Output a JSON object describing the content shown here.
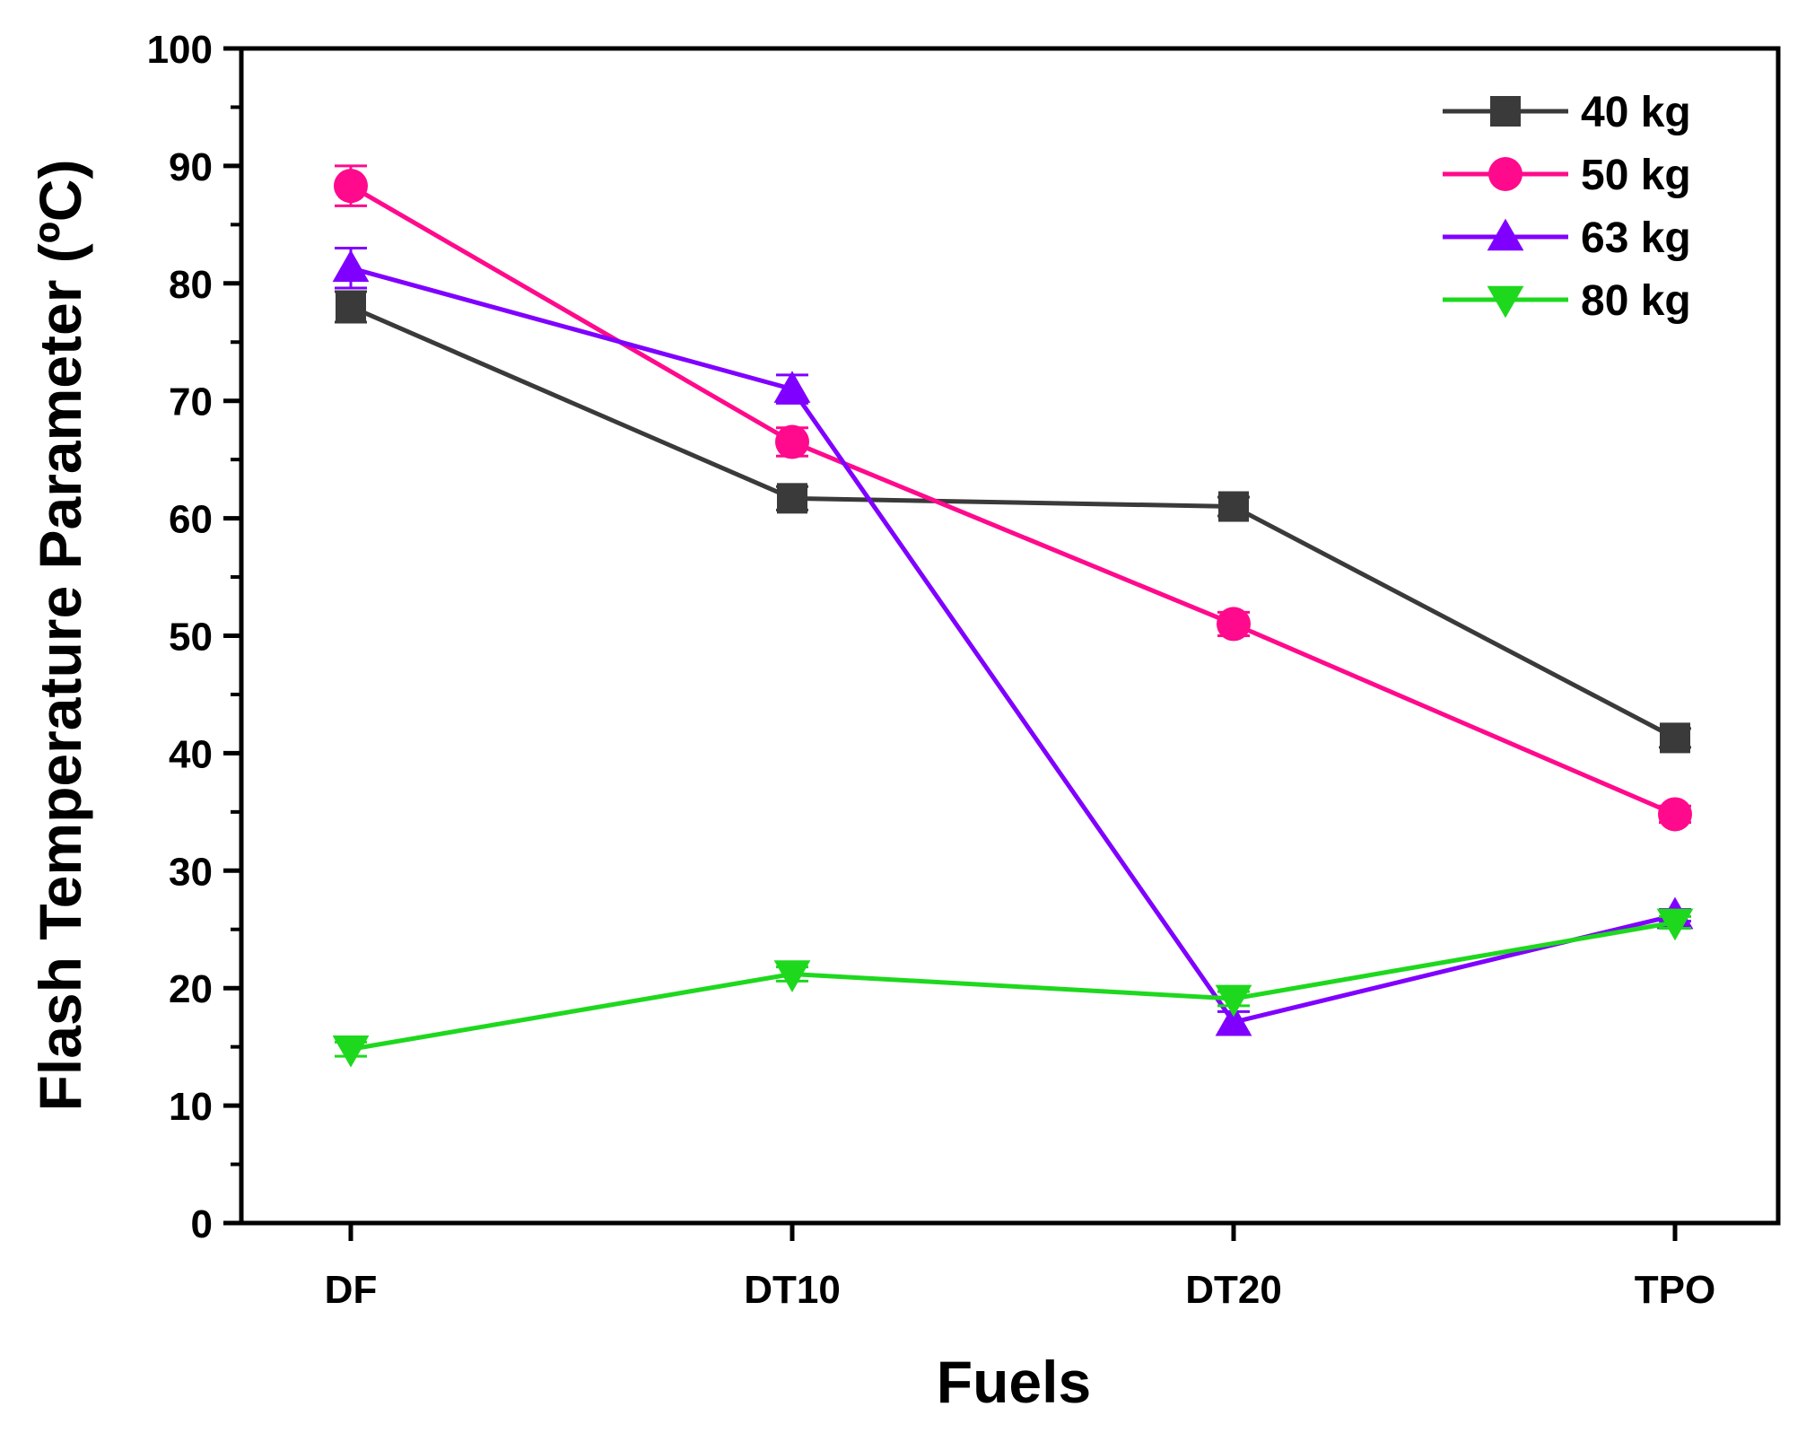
{
  "chart_data": {
    "type": "line",
    "title": "",
    "xlabel": "Fuels",
    "ylabel": "Flash Temperature Parameter (ºC)",
    "categories": [
      "DF",
      "DT10",
      "DT20",
      "TPO"
    ],
    "ylim": [
      0,
      100
    ],
    "yticks": [
      0,
      10,
      20,
      30,
      40,
      50,
      60,
      70,
      80,
      90,
      100
    ],
    "ytick_labels": [
      "0",
      "10",
      "20",
      "30",
      "40",
      "50",
      "60",
      "70",
      "80",
      "90",
      "100"
    ],
    "grid": false,
    "legend_position": "top-right",
    "series": [
      {
        "name": "40 kg",
        "color": "#3a3a3a",
        "marker": "square",
        "values": [
          78,
          61.7,
          61,
          41.3
        ],
        "errors": [
          1.3,
          1.0,
          0.8,
          0.8
        ]
      },
      {
        "name": "50 kg",
        "color": "#ff0a8c",
        "marker": "circle",
        "values": [
          88.3,
          66.5,
          51,
          34.8
        ],
        "errors": [
          1.7,
          1.2,
          1.0,
          0.7
        ]
      },
      {
        "name": "63 kg",
        "color": "#8000ff",
        "marker": "triangle-up",
        "values": [
          81.3,
          71,
          17.1,
          26.2
        ],
        "errors": [
          1.7,
          1.2,
          0.9,
          0.5
        ]
      },
      {
        "name": "80 kg",
        "color": "#1ed81e",
        "marker": "triangle-down",
        "values": [
          14.8,
          21.2,
          19.1,
          25.6
        ],
        "errors": [
          0.6,
          0.6,
          0.6,
          0.5
        ]
      }
    ]
  }
}
